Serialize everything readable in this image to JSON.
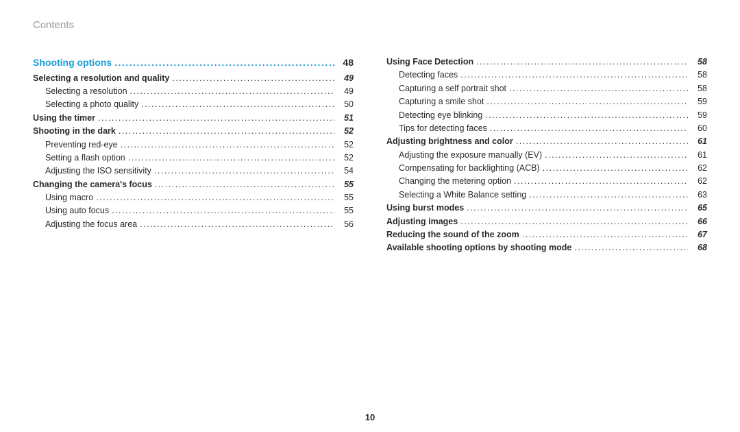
{
  "header": "Contents",
  "pageNumber": "10",
  "dotsFill": "..........................................................................................................................................................................",
  "left": [
    {
      "cls": "section",
      "title": "Shooting options",
      "page": "48"
    },
    {
      "cls": "bold emph",
      "title": "Selecting a resolution and quality",
      "page": "49"
    },
    {
      "cls": "sub",
      "title": "Selecting a resolution",
      "page": "49"
    },
    {
      "cls": "sub",
      "title": "Selecting a photo quality",
      "page": "50"
    },
    {
      "cls": "bold emph",
      "title": "Using the timer",
      "page": "51"
    },
    {
      "cls": "bold emph",
      "title": "Shooting in the dark",
      "page": "52"
    },
    {
      "cls": "sub",
      "title": "Preventing red-eye",
      "page": "52"
    },
    {
      "cls": "sub",
      "title": "Setting a flash option",
      "page": "52"
    },
    {
      "cls": "sub",
      "title": "Adjusting the ISO sensitivity",
      "page": "54"
    },
    {
      "cls": "bold emph",
      "title": "Changing the camera's focus",
      "page": "55"
    },
    {
      "cls": "sub",
      "title": "Using macro",
      "page": "55"
    },
    {
      "cls": "sub",
      "title": "Using auto focus",
      "page": "55"
    },
    {
      "cls": "sub",
      "title": "Adjusting the focus area",
      "page": "56"
    }
  ],
  "right": [
    {
      "cls": "bold emph",
      "title": "Using Face Detection",
      "page": "58"
    },
    {
      "cls": "sub",
      "title": "Detecting faces",
      "page": "58"
    },
    {
      "cls": "sub",
      "title": "Capturing a self portrait shot",
      "page": "58"
    },
    {
      "cls": "sub",
      "title": "Capturing a smile shot",
      "page": "59"
    },
    {
      "cls": "sub",
      "title": "Detecting eye blinking",
      "page": "59"
    },
    {
      "cls": "sub",
      "title": "Tips for detecting faces",
      "page": "60"
    },
    {
      "cls": "bold emph",
      "title": "Adjusting brightness and color",
      "page": "61"
    },
    {
      "cls": "sub",
      "title": "Adjusting the exposure manually (EV)",
      "page": "61"
    },
    {
      "cls": "sub",
      "title": "Compensating for backlighting (ACB)",
      "page": "62"
    },
    {
      "cls": "sub",
      "title": "Changing the metering option",
      "page": "62"
    },
    {
      "cls": "sub",
      "title": "Selecting a White Balance setting",
      "page": "63"
    },
    {
      "cls": "bold emph",
      "title": "Using burst modes",
      "page": "65"
    },
    {
      "cls": "bold emph",
      "title": "Adjusting images",
      "page": "66"
    },
    {
      "cls": "bold emph",
      "title": "Reducing the sound of the zoom",
      "page": "67"
    },
    {
      "cls": "bold emph",
      "title": "Available shooting options by shooting mode",
      "page": "68"
    }
  ]
}
